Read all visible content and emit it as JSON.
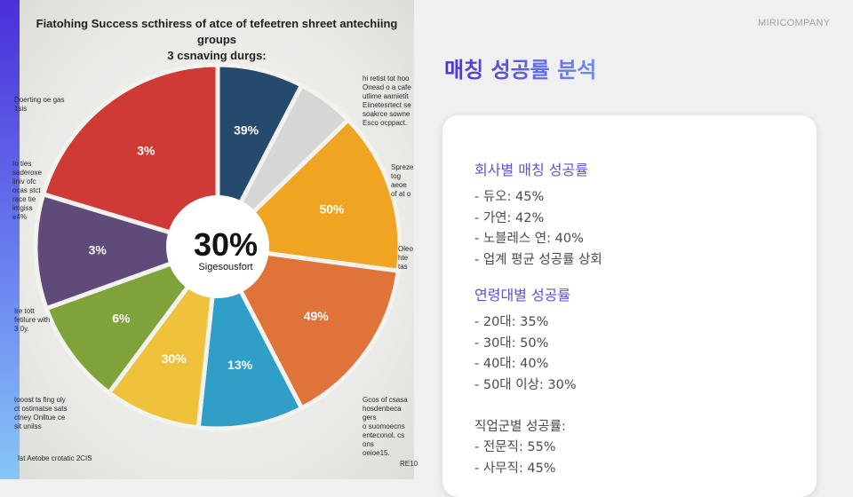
{
  "brand": "MIRICOMPANY",
  "heading": "매칭 성공률 분석",
  "image": {
    "title_line1": "Fiatohing Success scthiress of atce of tefeetren shreet antechiing groups",
    "title_line2": "3 csnaving durgs:",
    "center_value": "30%",
    "center_label": "Sigesousfort",
    "slices": [
      {
        "label": "39%",
        "value": 9,
        "color": "#26496e"
      },
      {
        "label": "",
        "value": 6,
        "color": "#d6d6d4"
      },
      {
        "label": "50%",
        "value": 17,
        "color": "#f0a522"
      },
      {
        "label": "49%",
        "value": 18,
        "color": "#e0733a"
      },
      {
        "label": "13%",
        "value": 11,
        "color": "#2f9fc8"
      },
      {
        "label": "30%",
        "value": 10,
        "color": "#f0c23c"
      },
      {
        "label": "6%",
        "value": 11,
        "color": "#7fa33a"
      },
      {
        "label": "3%",
        "value": 12,
        "color": "#5f4a7a"
      },
      {
        "label": "3%",
        "value": 24,
        "color": "#cf3a36"
      }
    ],
    "notes": {
      "left_top": "Doerting oe gas\n1sis",
      "left_mid": "Io ties\nsaderoxe\niiniv ofc\nocas stct\nrace tie\nimgiss\ne4%",
      "left_low": "Ire tott\nfetilure with\n3 0y.",
      "left_bottom": "tooost ts fing oly\nct ostimatse sats\nctney Onlltue ce\n sit unilss",
      "right_top": "hi retist tot hoo\nOnead o a cafe\nutlime aamietit\nEiinetesrtect se\nsoakrce sowne\nEsco ocppact.",
      "right_mid1": "Spreze\ntog aeoe\nof at o",
      "right_mid2": "Oleo\nhte\ntas",
      "right_bottom": "Gcos of csasa\nhosdenbeca gers\no suomoecns\nenteconol, cs ons\noeioe15.",
      "bottom_left": "Ist Aetobe crotatic 2CIS",
      "bottom_right": "RE10"
    }
  },
  "card": {
    "company": {
      "title": "회사별 매칭 성공률",
      "items": [
        "- 듀오: 45%",
        "- 가연: 42%",
        "- 노블레스 연: 40%",
        "- 업계 평균 성공률 상회"
      ]
    },
    "age": {
      "title": "연령대별 성공률",
      "items": [
        "- 20대: 35%",
        "- 30대: 50%",
        "- 40대: 40%",
        "- 50대 이상: 30%"
      ]
    },
    "job": {
      "title": "직업군별 성공률:",
      "items": [
        "- 전문직: 55%",
        "- 사무직: 45%"
      ]
    }
  }
}
